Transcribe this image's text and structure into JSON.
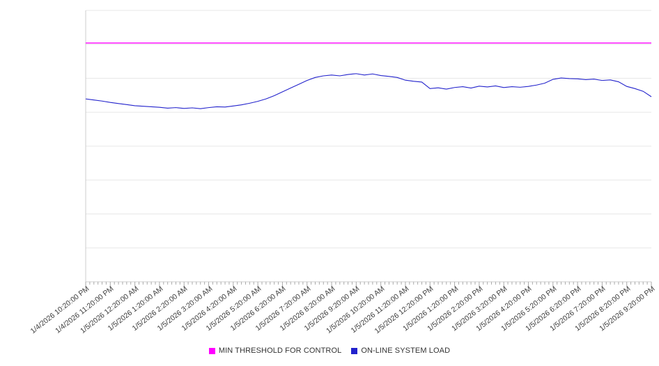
{
  "chart_data": {
    "type": "line",
    "title": "",
    "xlabel": "",
    "ylabel": "",
    "ylim": [
      0,
      100
    ],
    "grid": true,
    "legend_position": "bottom-center",
    "minor_ticks_per_hour": 6,
    "x_tick_labels": [
      "1/4/2026 10:20:00 PM",
      "1/4/2026 11:20:00 PM",
      "1/5/2026 12:20:00 AM",
      "1/5/2026 1:20:00 AM",
      "1/5/2026 2:20:00 AM",
      "1/5/2026 3:20:00 AM",
      "1/5/2026 4:20:00 AM",
      "1/5/2026 5:20:00 AM",
      "1/5/2026 6:20:00 AM",
      "1/5/2026 7:20:00 AM",
      "1/5/2026 8:20:00 AM",
      "1/5/2026 9:20:00 AM",
      "1/5/2026 10:20:00 AM",
      "1/5/2026 11:20:00 AM",
      "1/5/2026 12:20:00 PM",
      "1/5/2026 1:20:00 PM",
      "1/5/2026 2:20:00 PM",
      "1/5/2026 3:20:00 PM",
      "1/5/2026 4:20:00 PM",
      "1/5/2026 5:20:00 PM",
      "1/5/2026 6:20:00 PM",
      "1/5/2026 7:20:00 PM",
      "1/5/2026 8:20:00 PM",
      "1/5/2026 9:20:00 PM"
    ],
    "series": [
      {
        "name": "MIN THRESHOLD FOR CONTROL",
        "type": "constant-line",
        "color": "#ff00ff",
        "value": 88
      },
      {
        "name": "ON-LINE SYSTEM LOAD",
        "type": "line",
        "color": "#2222cc",
        "points_per_hour": 3,
        "values": [
          67.4,
          67.0,
          66.6,
          66.1,
          65.7,
          65.3,
          64.9,
          64.7,
          64.5,
          64.3,
          64.0,
          64.2,
          63.9,
          64.1,
          63.8,
          64.2,
          64.5,
          64.4,
          64.8,
          65.2,
          65.8,
          66.5,
          67.4,
          68.6,
          70.0,
          71.4,
          72.8,
          74.2,
          75.3,
          75.9,
          76.2,
          75.9,
          76.4,
          76.7,
          76.2,
          76.6,
          76.0,
          75.7,
          75.3,
          74.3,
          73.9,
          73.6,
          71.2,
          71.5,
          71.0,
          71.6,
          71.9,
          71.4,
          72.1,
          71.8,
          72.2,
          71.6,
          71.9,
          71.7,
          72.0,
          72.5,
          73.2,
          74.6,
          75.1,
          74.9,
          74.8,
          74.5,
          74.7,
          74.2,
          74.4,
          73.7,
          72.0,
          71.2,
          70.2,
          68.2
        ]
      }
    ]
  },
  "colors": {
    "grid": "#e7e7e7",
    "axis": "#cccccc",
    "tick": "#aaaaaa",
    "label_text": "#3d3d3d",
    "legend_text": "#333333",
    "background": "#ffffff"
  }
}
